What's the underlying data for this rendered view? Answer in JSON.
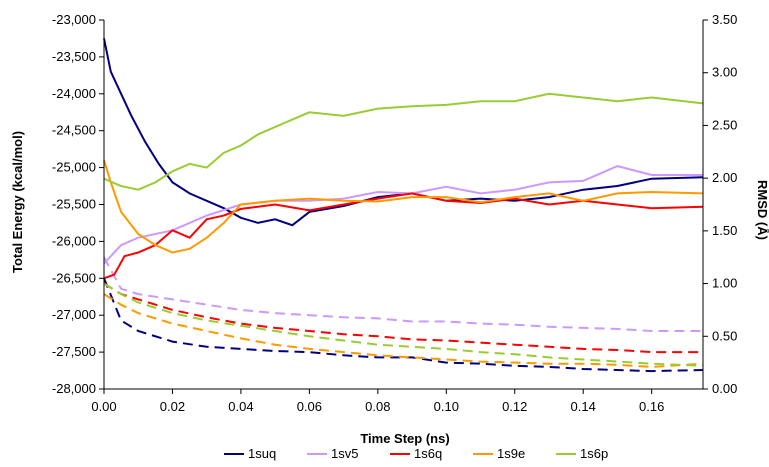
{
  "chart_data": {
    "type": "line",
    "xlabel": "Time Step (ns)",
    "ylabel_left": "Total Energy (kcal/mol)",
    "ylabel_right": "RMSD (Å)",
    "x_range": [
      0,
      0.175
    ],
    "y_left_range": [
      -28000,
      -23000
    ],
    "y_right_range": [
      0,
      3.5
    ],
    "x_ticks": [
      "0.00",
      "0.02",
      "0.04",
      "0.06",
      "0.08",
      "0.10",
      "0.12",
      "0.14",
      "0.16"
    ],
    "x_tick_values": [
      0,
      0.02,
      0.04,
      0.06,
      0.08,
      0.1,
      0.12,
      0.14,
      0.16
    ],
    "y_left_ticks": [
      "-23,000",
      "-23,500",
      "-24,000",
      "-24,500",
      "-25,000",
      "-25,500",
      "-26,000",
      "-26,500",
      "-27,000",
      "-27,500",
      "-28,000"
    ],
    "y_left_tick_values": [
      -23000,
      -23500,
      -24000,
      -24500,
      -25000,
      -25500,
      -26000,
      -26500,
      -27000,
      -27500,
      -28000
    ],
    "y_right_ticks": [
      "3.50",
      "3.00",
      "2.50",
      "2.00",
      "1.50",
      "1.00",
      "0.50",
      "0.00"
    ],
    "y_right_tick_values": [
      3.5,
      3.0,
      2.5,
      2.0,
      1.5,
      1.0,
      0.5,
      0.0
    ],
    "grid": false,
    "legend_position": "bottom",
    "series": [
      {
        "name": "1suq",
        "color": "#000080",
        "energy": {
          "x": [
            0,
            0.002,
            0.005,
            0.008,
            0.012,
            0.016,
            0.02,
            0.025,
            0.03,
            0.035,
            0.04,
            0.045,
            0.05,
            0.055,
            0.06,
            0.07,
            0.08,
            0.09,
            0.1,
            0.11,
            0.12,
            0.13,
            0.14,
            0.15,
            0.16,
            0.175
          ],
          "y": [
            -23250,
            -23700,
            -24000,
            -24300,
            -24650,
            -24950,
            -25200,
            -25350,
            -25450,
            -25550,
            -25680,
            -25750,
            -25700,
            -25780,
            -25600,
            -25520,
            -25400,
            -25350,
            -25450,
            -25420,
            -25450,
            -25400,
            -25300,
            -25250,
            -25150,
            -25130
          ]
        },
        "rmsd": {
          "x": [
            0,
            0.005,
            0.01,
            0.02,
            0.03,
            0.04,
            0.05,
            0.06,
            0.07,
            0.08,
            0.09,
            0.1,
            0.11,
            0.12,
            0.13,
            0.14,
            0.15,
            0.16,
            0.175
          ],
          "y": [
            1.05,
            0.65,
            0.55,
            0.45,
            0.4,
            0.38,
            0.36,
            0.35,
            0.32,
            0.3,
            0.3,
            0.25,
            0.24,
            0.22,
            0.21,
            0.19,
            0.18,
            0.17,
            0.18
          ]
        }
      },
      {
        "name": "1sv5",
        "color": "#cc99ff",
        "energy": {
          "x": [
            0,
            0.005,
            0.01,
            0.02,
            0.03,
            0.04,
            0.05,
            0.06,
            0.07,
            0.08,
            0.09,
            0.1,
            0.11,
            0.12,
            0.13,
            0.14,
            0.15,
            0.16,
            0.175
          ],
          "y": [
            -26300,
            -26050,
            -25950,
            -25850,
            -25650,
            -25500,
            -25450,
            -25450,
            -25420,
            -25330,
            -25350,
            -25260,
            -25350,
            -25300,
            -25200,
            -25180,
            -24980,
            -25100,
            -25100
          ]
        },
        "rmsd": {
          "x": [
            0,
            0.005,
            0.01,
            0.02,
            0.03,
            0.04,
            0.05,
            0.06,
            0.07,
            0.08,
            0.09,
            0.1,
            0.11,
            0.12,
            0.13,
            0.14,
            0.15,
            0.16,
            0.175
          ],
          "y": [
            1.25,
            0.95,
            0.9,
            0.85,
            0.8,
            0.75,
            0.72,
            0.7,
            0.68,
            0.67,
            0.64,
            0.64,
            0.62,
            0.61,
            0.59,
            0.58,
            0.57,
            0.55,
            0.55
          ]
        }
      },
      {
        "name": "1s6q",
        "color": "#ff0000",
        "energy": {
          "x": [
            0,
            0.003,
            0.006,
            0.01,
            0.015,
            0.02,
            0.025,
            0.03,
            0.035,
            0.04,
            0.05,
            0.06,
            0.07,
            0.08,
            0.09,
            0.1,
            0.11,
            0.12,
            0.13,
            0.14,
            0.15,
            0.16,
            0.175
          ],
          "y": [
            -26500,
            -26450,
            -26200,
            -26150,
            -26050,
            -25850,
            -25950,
            -25700,
            -25650,
            -25560,
            -25500,
            -25580,
            -25500,
            -25420,
            -25350,
            -25450,
            -25480,
            -25420,
            -25500,
            -25450,
            -25500,
            -25550,
            -25530
          ]
        },
        "rmsd": {
          "x": [
            0,
            0.005,
            0.01,
            0.02,
            0.03,
            0.04,
            0.05,
            0.06,
            0.07,
            0.08,
            0.09,
            0.1,
            0.11,
            0.12,
            0.13,
            0.14,
            0.15,
            0.16,
            0.175
          ],
          "y": [
            1.0,
            0.9,
            0.85,
            0.75,
            0.68,
            0.62,
            0.58,
            0.55,
            0.52,
            0.5,
            0.47,
            0.46,
            0.44,
            0.42,
            0.4,
            0.38,
            0.37,
            0.35,
            0.35
          ]
        }
      },
      {
        "name": "1s9e",
        "color": "#ff9900",
        "energy": {
          "x": [
            0,
            0.002,
            0.005,
            0.01,
            0.015,
            0.02,
            0.025,
            0.03,
            0.035,
            0.04,
            0.05,
            0.06,
            0.07,
            0.08,
            0.09,
            0.1,
            0.11,
            0.12,
            0.13,
            0.14,
            0.15,
            0.16,
            0.175
          ],
          "y": [
            -24900,
            -25200,
            -25600,
            -25900,
            -26050,
            -26150,
            -26100,
            -25950,
            -25750,
            -25500,
            -25450,
            -25420,
            -25450,
            -25460,
            -25400,
            -25400,
            -25470,
            -25400,
            -25350,
            -25450,
            -25350,
            -25330,
            -25350
          ]
        },
        "rmsd": {
          "x": [
            0,
            0.005,
            0.01,
            0.02,
            0.03,
            0.04,
            0.05,
            0.06,
            0.07,
            0.08,
            0.09,
            0.1,
            0.11,
            0.12,
            0.13,
            0.14,
            0.15,
            0.16,
            0.175
          ],
          "y": [
            0.9,
            0.8,
            0.72,
            0.62,
            0.55,
            0.48,
            0.42,
            0.38,
            0.35,
            0.32,
            0.3,
            0.28,
            0.26,
            0.25,
            0.24,
            0.24,
            0.23,
            0.21,
            0.24
          ]
        }
      },
      {
        "name": "1s6p",
        "color": "#99cc33",
        "energy": {
          "x": [
            0,
            0.005,
            0.01,
            0.015,
            0.02,
            0.025,
            0.03,
            0.035,
            0.04,
            0.045,
            0.05,
            0.055,
            0.06,
            0.07,
            0.08,
            0.09,
            0.1,
            0.11,
            0.12,
            0.13,
            0.14,
            0.15,
            0.16,
            0.175
          ],
          "y": [
            -25150,
            -25250,
            -25300,
            -25200,
            -25050,
            -24950,
            -25000,
            -24800,
            -24700,
            -24550,
            -24450,
            -24350,
            -24250,
            -24300,
            -24200,
            -24170,
            -24150,
            -24100,
            -24100,
            -24000,
            -24050,
            -24100,
            -24050,
            -24130
          ]
        },
        "rmsd": {
          "x": [
            0,
            0.005,
            0.01,
            0.02,
            0.03,
            0.04,
            0.05,
            0.06,
            0.07,
            0.08,
            0.09,
            0.1,
            0.11,
            0.12,
            0.13,
            0.14,
            0.15,
            0.16,
            0.175
          ],
          "y": [
            1.0,
            0.9,
            0.82,
            0.72,
            0.65,
            0.6,
            0.55,
            0.5,
            0.46,
            0.42,
            0.4,
            0.38,
            0.35,
            0.33,
            0.3,
            0.28,
            0.26,
            0.24,
            0.22
          ]
        }
      }
    ]
  }
}
